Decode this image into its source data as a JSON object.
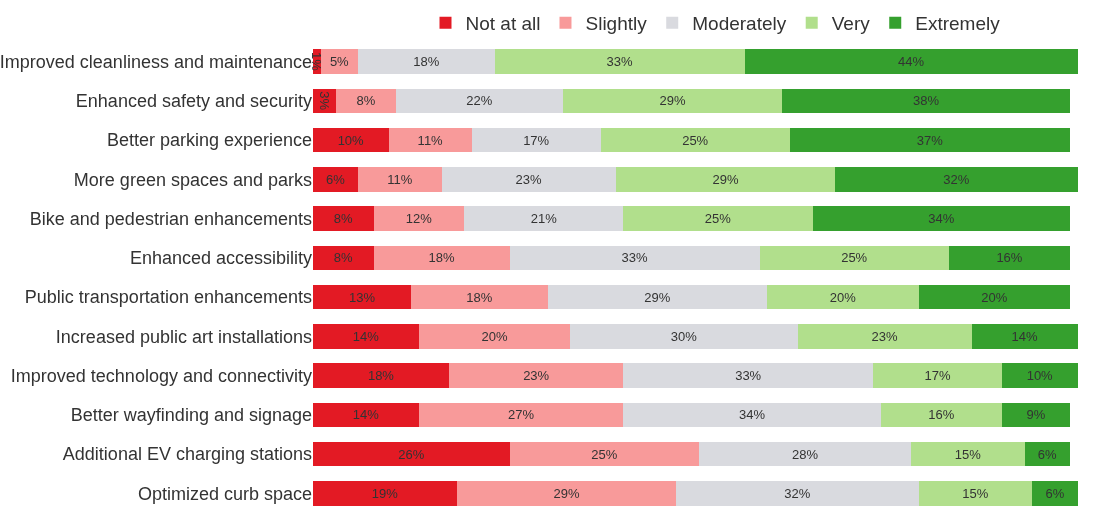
{
  "chart_data": {
    "type": "bar",
    "orientation": "horizontal",
    "stacked": true,
    "legend": "top",
    "grid": false,
    "tick_labels": "y",
    "categories": [
      "Improved cleanliness and maintenance",
      "Enhanced safety and security",
      "Better parking experience",
      "More green spaces and parks",
      "Bike and pedestrian enhancements",
      "Enhanced accessibility",
      "Public transportation enhancements",
      "Increased public art installations",
      "Improved technology and connectivity",
      "Better wayfinding and signage",
      "Additional EV charging stations",
      "Optimized curb space"
    ],
    "series": [
      {
        "name": "Not at all",
        "color": "#e31a24",
        "values": [
          1,
          3,
          10,
          6,
          8,
          8,
          13,
          14,
          18,
          14,
          26,
          19
        ],
        "value_labels": [
          "1%",
          "3%",
          "10%",
          "6%",
          "8%",
          "8%",
          "13%",
          "14%",
          "18%",
          "14%",
          "26%",
          "19%"
        ]
      },
      {
        "name": "Slightly",
        "color": "#f89a9a",
        "values": [
          5,
          8,
          11,
          11,
          12,
          18,
          18,
          20,
          23,
          27,
          25,
          29
        ],
        "value_labels": [
          "5%",
          "8%",
          "11%",
          "11%",
          "12%",
          "18%",
          "18%",
          "20%",
          "23%",
          "27%",
          "25%",
          "29%"
        ]
      },
      {
        "name": "Moderately",
        "color": "#d9dadf",
        "values": [
          18,
          22,
          17,
          23,
          21,
          33,
          29,
          30,
          33,
          34,
          28,
          32
        ],
        "value_labels": [
          "18%",
          "22%",
          "17%",
          "23%",
          "21%",
          "33%",
          "29%",
          "30%",
          "33%",
          "34%",
          "28%",
          "32%"
        ]
      },
      {
        "name": "Very",
        "color": "#b1df8c",
        "values": [
          33,
          29,
          25,
          29,
          25,
          25,
          20,
          23,
          17,
          16,
          15,
          15
        ],
        "value_labels": [
          "33%",
          "29%",
          "25%",
          "29%",
          "25%",
          "25%",
          "20%",
          "23%",
          "17%",
          "16%",
          "15%",
          "15%"
        ]
      },
      {
        "name": "Extremely",
        "color": "#35a02e",
        "values": [
          44,
          38,
          37,
          32,
          34,
          16,
          20,
          14,
          10,
          9,
          6,
          6
        ],
        "value_labels": [
          "44%",
          "38%",
          "37%",
          "32%",
          "34%",
          "16%",
          "20%",
          "14%",
          "10%",
          "9%",
          "6%",
          "6%"
        ]
      }
    ]
  }
}
